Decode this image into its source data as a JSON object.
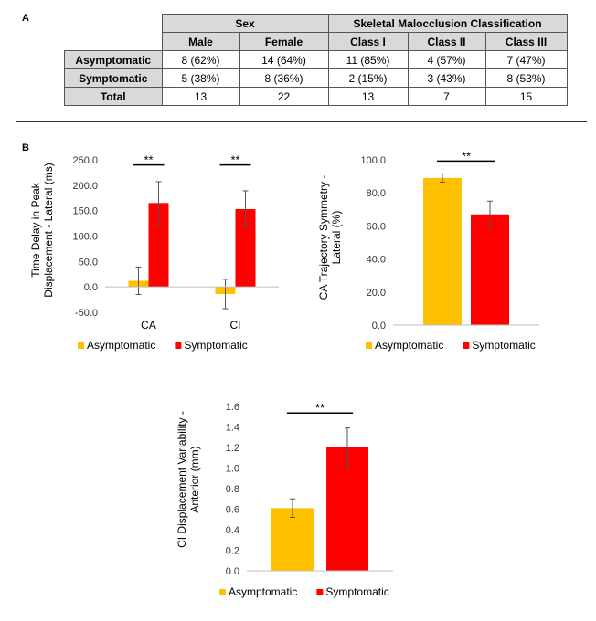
{
  "panel_a": {
    "label": "A",
    "group_headers": [
      "Sex",
      "Skeletal Malocclusion Classification"
    ],
    "column_headers": [
      "Male",
      "Female",
      "Class I",
      "Class II",
      "Class III"
    ],
    "rows": [
      {
        "label": "Asymptomatic",
        "cells": [
          "8 (62%)",
          "14 (64%)",
          "11 (85%)",
          "4 (57%)",
          "7 (47%)"
        ]
      },
      {
        "label": "Symptomatic",
        "cells": [
          "5 (38%)",
          "8 (36%)",
          "2 (15%)",
          "3 (43%)",
          "8 (53%)"
        ]
      },
      {
        "label": "Total",
        "cells": [
          "13",
          "22",
          "13",
          "7",
          "15"
        ]
      }
    ]
  },
  "panel_b": {
    "label": "B"
  },
  "colors": {
    "asymptomatic": "#FFC000",
    "symptomatic": "#FF0000"
  },
  "chart_data": [
    {
      "type": "bar",
      "ylabel_lines": [
        "Time Delay in Peak",
        "Displacement - Lateral (ms)"
      ],
      "categories": [
        "CA",
        "CI"
      ],
      "ylim": [
        -50,
        250
      ],
      "yticks": [
        -50,
        0,
        50,
        100,
        150,
        200,
        250
      ],
      "ytick_labels": [
        "-50.0",
        "0.0",
        "50.0",
        "100.0",
        "150.0",
        "200.0",
        "250.0"
      ],
      "series": [
        {
          "name": "Asymptomatic",
          "values": [
            12,
            -14
          ],
          "errors": [
            27,
            29
          ]
        },
        {
          "name": "Symptomatic",
          "values": [
            165,
            153
          ],
          "errors": [
            42,
            36
          ]
        }
      ],
      "significance": [
        "**",
        "**"
      ],
      "legend": "bottom"
    },
    {
      "type": "bar",
      "ylabel_lines": [
        "CA Trajectory Symmetry -",
        "Lateral (%)"
      ],
      "categories": [
        ""
      ],
      "ylim": [
        0,
        100
      ],
      "yticks": [
        0,
        20,
        40,
        60,
        80,
        100
      ],
      "ytick_labels": [
        "0.0",
        "20.0",
        "40.0",
        "60.0",
        "80.0",
        "100.0"
      ],
      "series": [
        {
          "name": "Asymptomatic",
          "values": [
            89
          ],
          "errors": [
            2.5
          ]
        },
        {
          "name": "Symptomatic",
          "values": [
            67
          ],
          "errors": [
            8
          ]
        }
      ],
      "significance": [
        "**"
      ],
      "legend": "bottom"
    },
    {
      "type": "bar",
      "ylabel_lines": [
        "CI Displacement Variability -",
        "Anterior (mm)"
      ],
      "categories": [
        ""
      ],
      "ylim": [
        0,
        1.6
      ],
      "yticks": [
        0,
        0.2,
        0.4,
        0.6,
        0.8,
        1.0,
        1.2,
        1.4,
        1.6
      ],
      "ytick_labels": [
        "0.0",
        "0.2",
        "0.4",
        "0.6",
        "0.8",
        "1.0",
        "1.2",
        "1.4",
        "1.6"
      ],
      "series": [
        {
          "name": "Asymptomatic",
          "values": [
            0.61
          ],
          "errors": [
            0.09
          ]
        },
        {
          "name": "Symptomatic",
          "values": [
            1.2
          ],
          "errors": [
            0.19
          ]
        }
      ],
      "significance": [
        "**"
      ],
      "legend": "bottom"
    }
  ]
}
